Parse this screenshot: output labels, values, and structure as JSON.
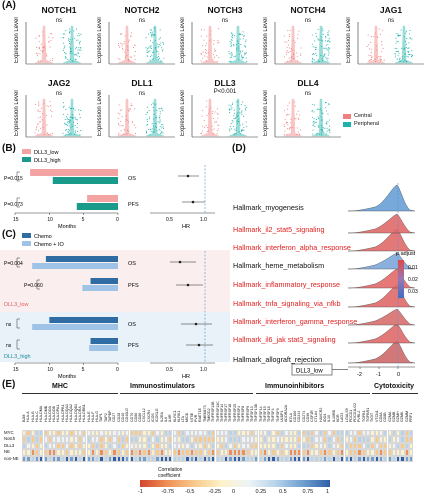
{
  "panels": {
    "a": "(A)",
    "b": "(B)",
    "c": "(C)",
    "d": "(D)",
    "e": "(E)"
  },
  "violins": [
    {
      "gene": "NOTCH1",
      "stat": "ns"
    },
    {
      "gene": "NOTCH2",
      "stat": "ns"
    },
    {
      "gene": "NOTCH3",
      "stat": "ns"
    },
    {
      "gene": "NOTCH4",
      "stat": "ns"
    },
    {
      "gene": "JAG1",
      "stat": "ns"
    },
    {
      "gene": "JAG2",
      "stat": "ns"
    },
    {
      "gene": "DLL1",
      "stat": "ns"
    },
    {
      "gene": "DLL3",
      "stat": "P<0.001"
    },
    {
      "gene": "DLL4",
      "stat": "ns"
    }
  ],
  "violin_ylabel": "Expression Level",
  "violin_legend": [
    {
      "label": "Central",
      "color": "#f08080"
    },
    {
      "label": "Peripheral",
      "color": "#20b2aa"
    }
  ],
  "colors": {
    "central": "#f08080",
    "peripheral": "#20b2aa",
    "dll3_low": "#f4a3a3",
    "dll3_high": "#1a9a8a",
    "chemo": "#2f6ca3",
    "chemo_io": "#9ec3e6"
  },
  "panel_b": {
    "legend": [
      "DLL3_low",
      "DLL3_high"
    ],
    "rows": [
      "OS",
      "PFS"
    ],
    "pvals": [
      "P=0.015",
      "P=0.073"
    ],
    "xticks": [
      "15",
      "10",
      "5",
      "0"
    ],
    "xlabel": "Months",
    "hr_ticks": [
      "0.5",
      "1.0"
    ],
    "hr_label": "HR",
    "chart_data": {
      "type": "bar",
      "categories": [
        "OS",
        "PFS"
      ],
      "series": [
        {
          "name": "DLL3_low",
          "values": [
            12.8,
            4.5
          ]
        },
        {
          "name": "DLL3_high",
          "values": [
            9.5,
            6.0
          ]
        }
      ],
      "xlim": [
        0,
        15
      ]
    }
  },
  "panel_c": {
    "legend": [
      "Chemo",
      "Chemo + IO"
    ],
    "rows": [
      "OS",
      "PFS",
      "OS",
      "PFS"
    ],
    "pvals": [
      "P=0.004",
      "P=0.060",
      "ns",
      "ns"
    ],
    "groups": [
      "DLL3_low",
      "DLL3_high"
    ],
    "xticks": [
      "15",
      "10",
      "5",
      "0"
    ],
    "xlabel": "Months",
    "hr_ticks": [
      "0.5",
      "1.0"
    ],
    "hr_label": "HR",
    "chart_data": {
      "type": "bar",
      "categories": [
        "DLL3_low OS",
        "DLL3_low PFS",
        "DLL3_high OS",
        "DLL3_high PFS"
      ],
      "series": [
        {
          "name": "Chemo",
          "values": [
            10.5,
            4.0,
            10.0,
            4.0
          ]
        },
        {
          "name": "Chemo + IO",
          "values": [
            12.5,
            5.2,
            12.5,
            4.2
          ]
        }
      ],
      "xlim": [
        0,
        15
      ]
    }
  },
  "panel_d": {
    "pathways": [
      {
        "label": "Hallmark_myogenesis",
        "red": false
      },
      {
        "label": "Hallmark_il2_stat5_signaling",
        "red": true
      },
      {
        "label": "Hallmark_interferon_alpha_response",
        "red": true
      },
      {
        "label": "Hallmark_heme_metabolism",
        "red": false
      },
      {
        "label": "Hallmark_inflammatory_response",
        "red": true
      },
      {
        "label": "Hallmark_tnfa_signaling_via_nfkb",
        "red": true
      },
      {
        "label": "Hallmark_interferon_gamma_response",
        "red": true
      },
      {
        "label": "Hallmark_il6_jak stat3_signaling",
        "red": true
      },
      {
        "label": "Hallmark_allograft_rejection",
        "red": false
      }
    ],
    "xticks": [
      "-2",
      "-1",
      "0"
    ],
    "xlabel": "Enrichment distribution",
    "legend_title": "p.adjust",
    "legend_ticks": [
      "0.01",
      "0.02",
      "0.03"
    ],
    "box_label": "DLL3_low"
  },
  "panel_e": {
    "groups": [
      "MHC",
      "Immunostimulators",
      "Immunoinhibitors",
      "Cytotoxicity"
    ],
    "rows": [
      "MYC",
      "Notch",
      "DLL3",
      "NE",
      "non-NE"
    ],
    "genes": [
      "B2M",
      "HLA-A",
      "HLA-B",
      "HLA-C",
      "HLA-DMA",
      "HLA-DMB",
      "HLA-DOA",
      "HLA-DOB",
      "HLA-DPA1",
      "HLA-DPB1",
      "HLA-DQA1",
      "HLA-DQA2",
      "HLA-DQB1",
      "HLA-DRA",
      "HLA-DRB1",
      "HLA-E",
      "HLA-F",
      "HLA-G",
      "TAP1",
      "TAP2",
      "TAPBP",
      "CD27",
      "CD28",
      "CD40",
      "CD40LG",
      "CD70",
      "CD80",
      "CD86",
      "CXCL12",
      "CXCR4",
      "ICOS",
      "ICOSLG",
      "IL2RA",
      "IL6",
      "IL6R",
      "KLRC1",
      "KLRK1",
      "LTA",
      "MICB",
      "NT5E",
      "PVR",
      "RAET1E",
      "TMEM173",
      "TMIGD2",
      "TNFRSF13B",
      "TNFRSF13C",
      "TNFRSF14",
      "TNFRSF17",
      "TNFRSF18",
      "TNFRSF25",
      "TNFRSF4",
      "TNFRSF8",
      "TNFRSF9",
      "TNFSF13",
      "TNFSF13B",
      "TNFSF14",
      "TNFSF15",
      "TNFSF18",
      "TNFSF4",
      "TNFSF9",
      "ULBP1",
      "ADORA2A",
      "BTLA",
      "CD160",
      "CD244",
      "CD274",
      "CD96",
      "CSF1R",
      "CTLA4",
      "HAVCR2",
      "IDO1",
      "IL10",
      "IL10RB",
      "KDR",
      "LAG3",
      "LGALS9",
      "PDCD1",
      "PDCD1LG2",
      "PVRL2",
      "TGFB1",
      "TGFBR1",
      "TIGIT",
      "VTCN1",
      "CD8A",
      "CD8B",
      "GZMA",
      "GZMB",
      "GZMH",
      "GZMK",
      "GZMM",
      "PRF1"
    ],
    "legend_title": "Correlation\ncoefficient",
    "legend_ticks": [
      "-1",
      "-0.75",
      "-0.5",
      "-0.25",
      "0",
      "0.25",
      "0.5",
      "0.75",
      "1"
    ]
  }
}
